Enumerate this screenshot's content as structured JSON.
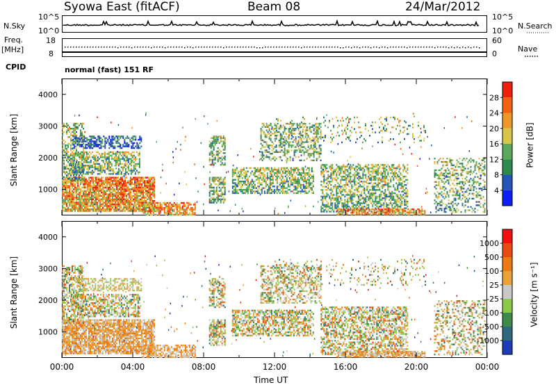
{
  "header": {
    "station": "Syowa East (fitACF)",
    "beam": "Beam 08",
    "date": "24/Mar/2012"
  },
  "top_panels": {
    "nsky_label": "N.Sky",
    "nsearch_label": "N.Search",
    "nsky_ticks": [
      "10^5",
      "10^0"
    ],
    "nsky_right_ticks": [
      "10^5",
      "10^0"
    ],
    "freq_label": "Freq.",
    "freq_unit": "[MHz]",
    "freq_ticks": [
      "18",
      "8"
    ],
    "nave_label": "Nave",
    "nave_ticks": [
      "60",
      "0"
    ],
    "cpid_label": "CPID",
    "cpid_text": "normal (fast) 151 RF"
  },
  "chart_data": [
    {
      "type": "heatmap",
      "name": "power",
      "ylabel": "Slant Range [km]",
      "ylim": [
        180,
        4500
      ],
      "yticks": [
        "4000",
        "3000",
        "2000",
        "1000"
      ],
      "xlim": [
        0,
        24
      ],
      "colorbar_label": "Power [dB]",
      "colorbar_ticks": [
        "28",
        "24",
        "20",
        "16",
        "12",
        "8",
        "4"
      ],
      "colors": [
        "#0b1ef5",
        "#2455b8",
        "#2f8a4e",
        "#5aa85a",
        "#d7c64a",
        "#ee9626",
        "#f55f10",
        "#f01e0c"
      ]
    },
    {
      "type": "heatmap",
      "name": "velocity",
      "ylabel": "Slant Range [km]",
      "ylim": [
        180,
        4500
      ],
      "yticks": [
        "4000",
        "3000",
        "2000",
        "1000"
      ],
      "xlim": [
        0,
        24
      ],
      "xticks": [
        "00:00",
        "04:00",
        "08:00",
        "12:00",
        "16:00",
        "20:00",
        "00:00"
      ],
      "xlabel": "Time UT",
      "colorbar_label": "Velocity [m s⁻¹]",
      "colorbar_ticks": [
        "1000",
        "500",
        "100",
        "25",
        "-25",
        "-100",
        "-500",
        "-1000"
      ],
      "colors": [
        "#1f3cb8",
        "#2f6a7c",
        "#3f8a4a",
        "#8ccb4a",
        "#c8c8c8",
        "#e9a23a",
        "#ec7a12",
        "#e84a10",
        "#f01010"
      ]
    }
  ]
}
